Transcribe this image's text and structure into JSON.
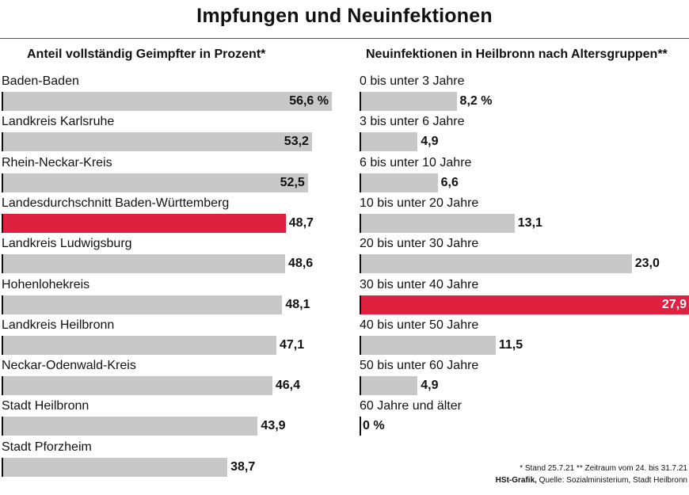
{
  "title": "Impfungen und Neuinfektionen",
  "colors": {
    "bar": "#c8c8c8",
    "highlight": "#e0203f",
    "text": "#111111"
  },
  "chart_data": [
    {
      "type": "bar",
      "orientation": "horizontal",
      "title": "Anteil vollständig Geimpfter in Prozent*",
      "categories": [
        "Baden-Baden",
        "Landkreis Karlsruhe",
        "Rhein-Neckar-Kreis",
        "Landesdurchschnitt Baden-Württemberg",
        "Landkreis Ludwigsburg",
        "Hohenlohekreis",
        "Landkreis Heilbronn",
        "Neckar-Odenwald-Kreis",
        "Stadt Heilbronn",
        "Stadt Pforzheim"
      ],
      "values": [
        56.6,
        53.2,
        52.5,
        48.7,
        48.6,
        48.1,
        47.1,
        46.4,
        43.9,
        38.7
      ],
      "value_labels": [
        "56,6 %",
        "53,2",
        "52,5",
        "48,7",
        "48,6",
        "48,1",
        "47,1",
        "46,4",
        "43,9",
        "38,7"
      ],
      "highlight": "Landesdurchschnitt Baden-Württemberg",
      "grid": false
    },
    {
      "type": "bar",
      "orientation": "horizontal",
      "title": "Neuinfektionen in Heilbronn nach Altersgruppen**",
      "categories": [
        "0 bis unter 3 Jahre",
        "3 bis unter 6 Jahre",
        "6 bis unter 10 Jahre",
        "10 bis unter 20 Jahre",
        "20 bis unter 30 Jahre",
        "30 bis unter 40 Jahre",
        "40 bis unter 50 Jahre",
        "50 bis unter 60 Jahre",
        "60 Jahre und älter"
      ],
      "values": [
        8.2,
        4.9,
        6.6,
        13.1,
        23.0,
        27.9,
        11.5,
        4.9,
        0
      ],
      "value_labels": [
        "8,2 %",
        "4,9",
        "6,6",
        "13,1",
        "23,0",
        "27,9",
        "11,5",
        "4,9",
        "0 %"
      ],
      "highlight": "30 bis unter 40 Jahre",
      "grid": false
    }
  ],
  "footnotes": {
    "line1": "* Stand 25.7.21   ** Zeitraum vom 24. bis 31.7.21",
    "credit_bold": "HSt-Grafik,",
    "credit_rest": " Quelle: Sozialministerium, Stadt Heilbronn"
  }
}
